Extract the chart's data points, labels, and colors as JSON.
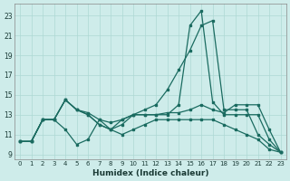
{
  "xlabel": "Humidex (Indice chaleur)",
  "bg_color": "#ceecea",
  "grid_color": "#aed8d4",
  "line_color": "#1a6b60",
  "xlim": [
    -0.5,
    23.5
  ],
  "ylim": [
    8.5,
    24.2
  ],
  "xticks": [
    0,
    1,
    2,
    3,
    4,
    5,
    6,
    7,
    8,
    9,
    10,
    11,
    12,
    13,
    14,
    15,
    16,
    17,
    18,
    19,
    20,
    21,
    22,
    23
  ],
  "yticks": [
    9,
    11,
    13,
    15,
    17,
    19,
    21,
    23
  ],
  "line1": [
    10.3,
    10.3,
    12.5,
    12.5,
    14.5,
    13.5,
    13.2,
    12.5,
    12.2,
    12.5,
    13.0,
    13.0,
    13.0,
    13.2,
    13.2,
    13.5,
    14.0,
    13.5,
    13.2,
    14.0,
    14.0,
    14.0,
    11.5,
    9.2
  ],
  "line2": [
    10.3,
    10.3,
    12.5,
    12.5,
    14.5,
    13.5,
    13.0,
    12.0,
    11.5,
    12.0,
    13.0,
    13.0,
    13.0,
    13.0,
    14.0,
    22.0,
    23.5,
    14.3,
    13.0,
    13.0,
    13.0,
    13.0,
    10.5,
    9.2
  ],
  "line3": [
    10.3,
    10.3,
    12.5,
    12.5,
    14.5,
    13.5,
    13.0,
    12.0,
    11.5,
    12.5,
    13.0,
    13.5,
    14.0,
    15.5,
    17.5,
    19.5,
    22.0,
    22.5,
    13.5,
    13.5,
    13.5,
    11.0,
    10.0,
    9.2
  ],
  "line4": [
    10.3,
    10.3,
    12.5,
    12.5,
    11.5,
    10.0,
    10.5,
    12.5,
    11.5,
    11.0,
    11.5,
    12.0,
    12.5,
    12.5,
    12.5,
    12.5,
    12.5,
    12.5,
    12.0,
    11.5,
    11.0,
    10.5,
    9.5,
    9.2
  ]
}
